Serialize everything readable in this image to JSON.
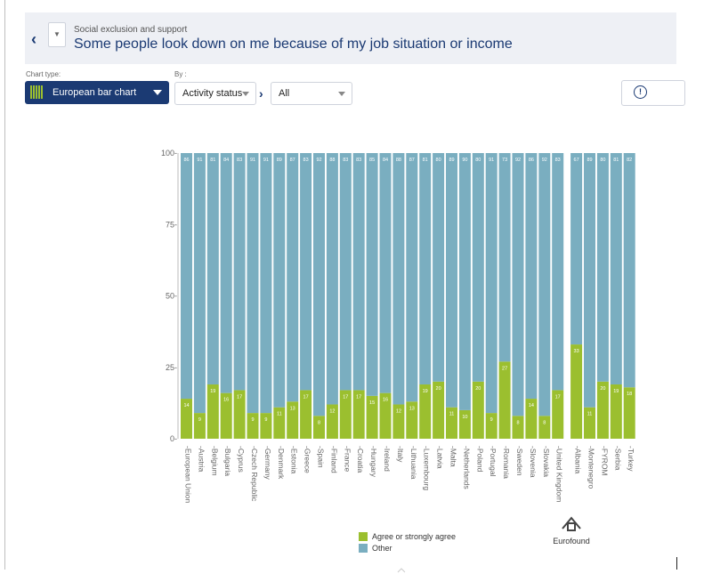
{
  "header": {
    "subtitle": "Social exclusion and support",
    "title": "Some people look down on me because of my job situation or income",
    "back_glyph": "‹",
    "dropdown_glyph": "▼"
  },
  "controls": {
    "chart_type_label": "Chart type:",
    "chart_type_value": "European bar chart",
    "by_label": "By :",
    "by_value": "Activity status",
    "filter_value": "All",
    "chevron_glyph": "›",
    "info_glyph": "!"
  },
  "colors": {
    "agree": "#9bbf2f",
    "other": "#7aaec0",
    "primary": "#1b3a73"
  },
  "chart_data": {
    "type": "bar",
    "stacked": true,
    "categories": [
      "European Union",
      "Austria",
      "Belgium",
      "Bulgaria",
      "Cyprus",
      "Czech Republic",
      "Germany",
      "Denmark",
      "Estonia",
      "Greece",
      "Spain",
      "Finland",
      "France",
      "Croatia",
      "Hungary",
      "Ireland",
      "Italy",
      "Lithuania",
      "Luxembourg",
      "Latvia",
      "Malta",
      "Netherlands",
      "Poland",
      "Portugal",
      "Romania",
      "Sweden",
      "Slovenia",
      "Slovakia",
      "United Kingdom",
      "Albania",
      "Montenegro",
      "FYROM",
      "Serbia",
      "Turkey"
    ],
    "series": [
      {
        "name": "Agree or strongly agree",
        "values": [
          14,
          9,
          19,
          16,
          17,
          9,
          9,
          11,
          13,
          17,
          8,
          12,
          17,
          17,
          15,
          16,
          12,
          13,
          19,
          20,
          11,
          10,
          20,
          9,
          27,
          8,
          14,
          8,
          17,
          33,
          11,
          20,
          19,
          18
        ]
      },
      {
        "name": "Other",
        "values": [
          86,
          91,
          81,
          84,
          83,
          91,
          91,
          89,
          87,
          83,
          92,
          88,
          83,
          83,
          85,
          84,
          88,
          87,
          81,
          80,
          89,
          90,
          80,
          91,
          73,
          92,
          86,
          92,
          83,
          67,
          89,
          80,
          81,
          82
        ]
      }
    ],
    "ylim": [
      0,
      100
    ],
    "yticks": [
      "0",
      "25",
      "50",
      "75",
      "100"
    ],
    "legend_position": "bottom"
  },
  "logo_text": "Eurofound"
}
